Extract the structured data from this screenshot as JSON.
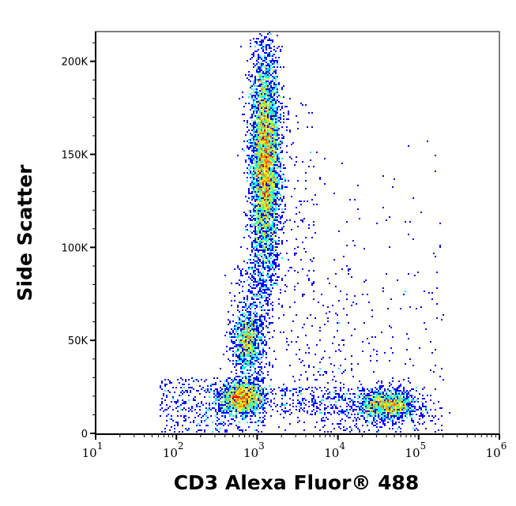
{
  "chart_data": {
    "type": "scatter",
    "subtype": "flow-cytometry-density-dot-plot",
    "xlabel": "CD3 Alexa Fluor® 488",
    "ylabel": "Side Scatter",
    "xscale": "log",
    "xlim": [
      10,
      1000000
    ],
    "ylim": [
      0,
      216000
    ],
    "x_ticks": [
      {
        "base": "10",
        "exp": "1"
      },
      {
        "base": "10",
        "exp": "2"
      },
      {
        "base": "10",
        "exp": "3"
      },
      {
        "base": "10",
        "exp": "4"
      },
      {
        "base": "10",
        "exp": "5"
      },
      {
        "base": "10",
        "exp": "6"
      }
    ],
    "y_ticks": [
      {
        "value": 0,
        "label": "0"
      },
      {
        "value": 50000,
        "label": "50K"
      },
      {
        "value": 100000,
        "label": "100K"
      },
      {
        "value": 150000,
        "label": "150K"
      },
      {
        "value": 200000,
        "label": "200K"
      }
    ],
    "grid": false,
    "color_map": "jet (blue = low density, red = high density)",
    "populations": [
      {
        "log10_x_center": 3.1,
        "log10_x_sd": 0.09,
        "y_center": 145000,
        "y_sd": 30000,
        "events": 5200
      },
      {
        "log10_x_center": 2.87,
        "log10_x_sd": 0.09,
        "y_center": 50000,
        "y_sd": 8000,
        "events": 900
      },
      {
        "log10_x_center": 2.8,
        "log10_x_sd": 0.13,
        "y_center": 19000,
        "y_sd": 4500,
        "events": 1400
      },
      {
        "log10_x_center": 4.62,
        "log10_x_sd": 0.18,
        "y_center": 15000,
        "y_sd": 4000,
        "events": 1300
      }
    ],
    "colors": {
      "low": "#0000ff",
      "high": "#ff0000",
      "axis": "#000000"
    }
  }
}
